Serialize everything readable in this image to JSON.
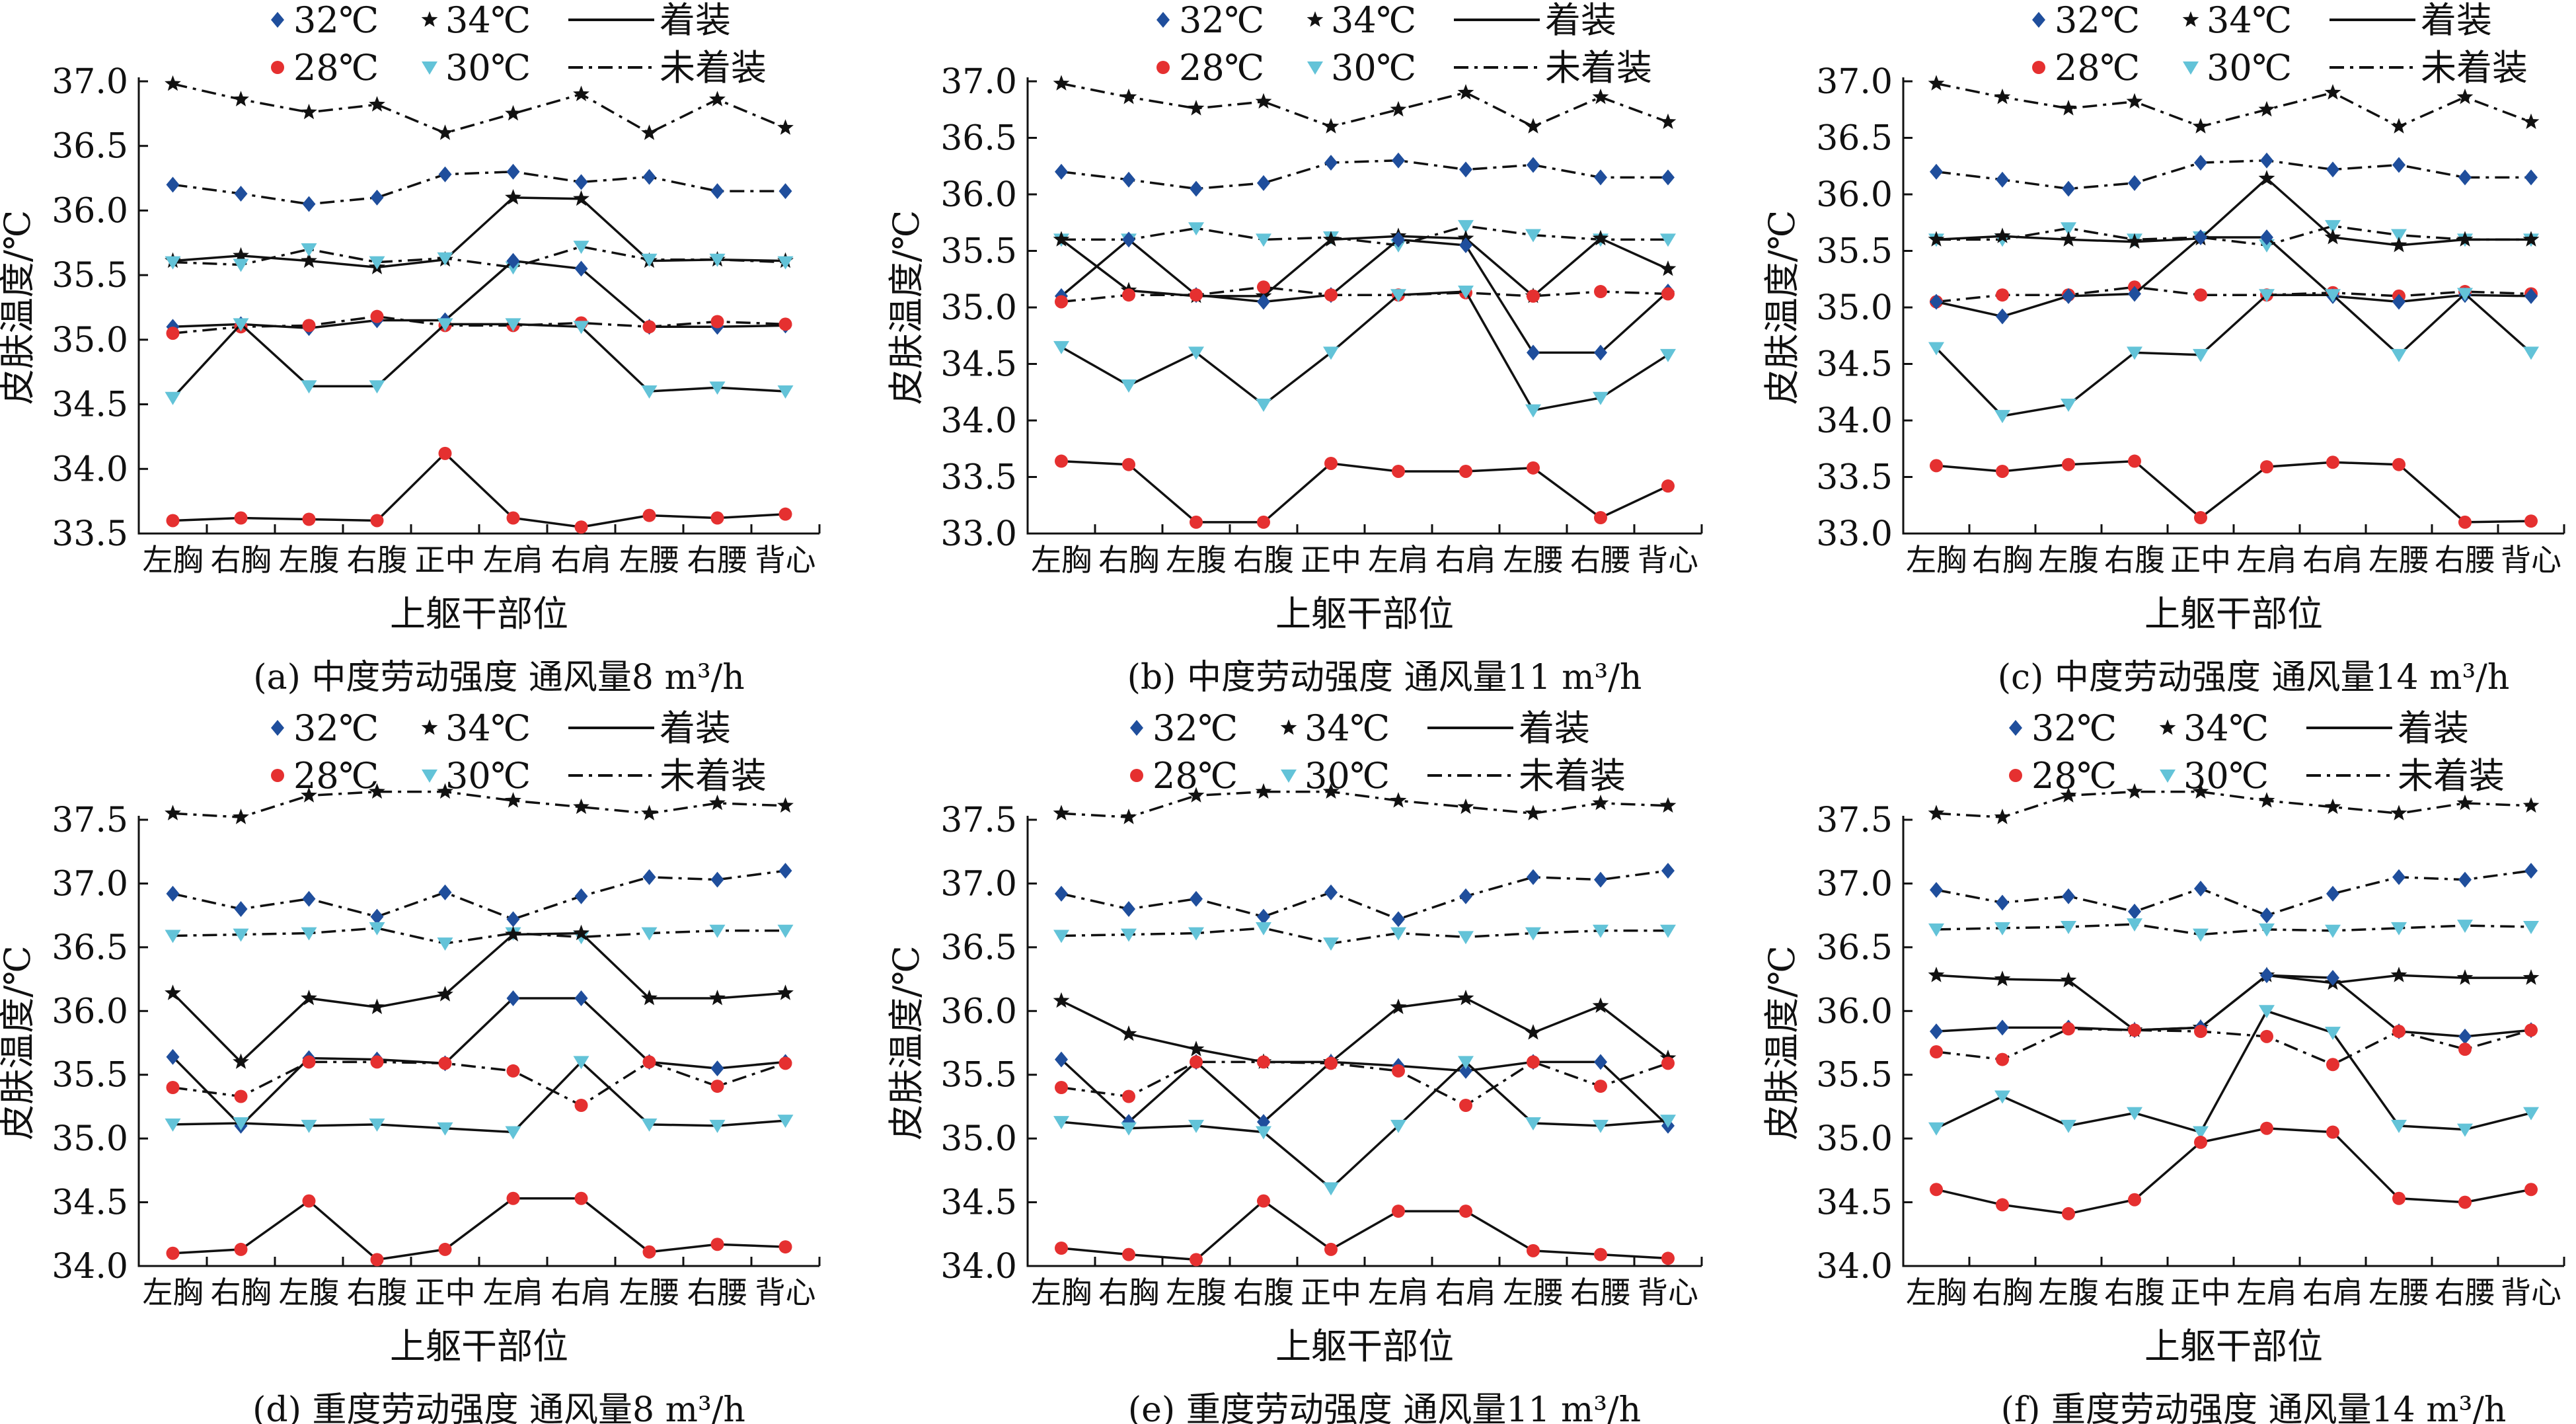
{
  "legend": {
    "row1": [
      {
        "key": "32",
        "label": "32℃",
        "marker": "diamond",
        "color": "#1f4e9c"
      },
      {
        "key": "34",
        "label": "34℃",
        "marker": "star",
        "color": "#111111"
      },
      {
        "key": "worn",
        "label": "着装",
        "line": "solid"
      }
    ],
    "row2": [
      {
        "key": "28",
        "label": "28℃",
        "marker": "circle",
        "color": "#e53030"
      },
      {
        "key": "30",
        "label": "30℃",
        "marker": "triangle-down",
        "color": "#63c3d8"
      },
      {
        "key": "notworn",
        "label": "未着装",
        "line": "dashdot"
      }
    ]
  },
  "chart_data": [
    {
      "type": "line",
      "caption": "(a) 中度劳动强度  通风量8 m³/h",
      "xlabel": "上躯干部位",
      "ylabel": "皮肤温度/℃",
      "categories": [
        "左胸",
        "右胸",
        "左腹",
        "右腹",
        "正中",
        "左肩",
        "右肩",
        "左腰",
        "右腰",
        "背心"
      ],
      "ylim": [
        33.5,
        37.0
      ],
      "yticks": [
        "33.5",
        "34.0",
        "34.5",
        "35.0",
        "35.5",
        "36.0",
        "36.5",
        "37.0"
      ],
      "grid": false,
      "series": [
        {
          "temp": "34",
          "clothing": "notworn",
          "values": [
            36.98,
            36.86,
            36.76,
            36.82,
            36.6,
            36.75,
            36.9,
            36.6,
            36.86,
            36.64
          ]
        },
        {
          "temp": "32",
          "clothing": "notworn",
          "values": [
            36.2,
            36.13,
            36.05,
            36.1,
            36.28,
            36.3,
            36.22,
            36.26,
            36.15,
            36.15
          ]
        },
        {
          "temp": "34",
          "clothing": "worn",
          "values": [
            35.61,
            35.65,
            35.61,
            35.56,
            35.62,
            36.1,
            36.09,
            35.61,
            35.62,
            35.61
          ]
        },
        {
          "temp": "30",
          "clothing": "notworn",
          "values": [
            35.6,
            35.58,
            35.7,
            35.6,
            35.63,
            35.56,
            35.72,
            35.62,
            35.62,
            35.6
          ]
        },
        {
          "temp": "32",
          "clothing": "worn",
          "values": [
            35.1,
            35.12,
            35.09,
            35.15,
            35.15,
            35.61,
            35.55,
            35.1,
            35.1,
            35.11
          ]
        },
        {
          "temp": "28",
          "clothing": "notworn",
          "values": [
            35.05,
            35.1,
            35.11,
            35.18,
            35.11,
            35.11,
            35.13,
            35.1,
            35.14,
            35.12
          ]
        },
        {
          "temp": "30",
          "clothing": "worn",
          "values": [
            34.55,
            35.12,
            34.64,
            34.64,
            35.12,
            35.12,
            35.1,
            34.6,
            34.63,
            34.6
          ]
        },
        {
          "temp": "28",
          "clothing": "worn",
          "values": [
            33.6,
            33.62,
            33.61,
            33.6,
            34.12,
            33.62,
            33.55,
            33.64,
            33.62,
            33.65
          ]
        }
      ]
    },
    {
      "type": "line",
      "caption": "(b) 中度劳动强度  通风量11 m³/h",
      "xlabel": "上躯干部位",
      "ylabel": "皮肤温度/℃",
      "categories": [
        "左胸",
        "右胸",
        "左腹",
        "右腹",
        "正中",
        "左肩",
        "右肩",
        "左腰",
        "右腰",
        "背心"
      ],
      "ylim": [
        33.0,
        37.0
      ],
      "yticks": [
        "33.0",
        "33.5",
        "34.0",
        "34.5",
        "35.0",
        "35.5",
        "36.0",
        "36.5",
        "37.0"
      ],
      "grid": false,
      "series": [
        {
          "temp": "34",
          "clothing": "notworn",
          "values": [
            36.98,
            36.86,
            36.76,
            36.82,
            36.6,
            36.75,
            36.9,
            36.6,
            36.86,
            36.64
          ]
        },
        {
          "temp": "32",
          "clothing": "notworn",
          "values": [
            36.2,
            36.13,
            36.05,
            36.1,
            36.28,
            36.3,
            36.22,
            36.26,
            36.15,
            36.15
          ]
        },
        {
          "temp": "30",
          "clothing": "notworn",
          "values": [
            35.6,
            35.6,
            35.7,
            35.6,
            35.62,
            35.55,
            35.72,
            35.64,
            35.6,
            35.6
          ]
        },
        {
          "temp": "34",
          "clothing": "worn",
          "values": [
            35.6,
            35.15,
            35.1,
            35.1,
            35.6,
            35.63,
            35.61,
            35.1,
            35.61,
            35.34
          ]
        },
        {
          "temp": "32",
          "clothing": "worn",
          "values": [
            35.1,
            35.6,
            35.11,
            35.05,
            35.11,
            35.6,
            35.55,
            34.6,
            34.6,
            35.14
          ]
        },
        {
          "temp": "28",
          "clothing": "notworn",
          "values": [
            35.05,
            35.11,
            35.11,
            35.18,
            35.11,
            35.11,
            35.13,
            35.1,
            35.14,
            35.12
          ]
        },
        {
          "temp": "30",
          "clothing": "worn",
          "values": [
            34.65,
            34.31,
            34.6,
            34.14,
            34.6,
            35.11,
            35.14,
            34.09,
            34.2,
            34.58
          ]
        },
        {
          "temp": "28",
          "clothing": "worn",
          "values": [
            33.64,
            33.61,
            33.1,
            33.1,
            33.62,
            33.55,
            33.55,
            33.58,
            33.14,
            33.42
          ]
        }
      ]
    },
    {
      "type": "line",
      "caption": "(c) 中度劳动强度  通风量14 m³/h",
      "xlabel": "上躯干部位",
      "ylabel": "皮肤温度/℃",
      "categories": [
        "左胸",
        "右胸",
        "左腹",
        "右腹",
        "正中",
        "左肩",
        "右肩",
        "左腰",
        "右腰",
        "背心"
      ],
      "ylim": [
        33.0,
        37.0
      ],
      "yticks": [
        "33.0",
        "33.5",
        "34.0",
        "34.5",
        "35.0",
        "35.5",
        "36.0",
        "36.5",
        "37.0"
      ],
      "grid": false,
      "series": [
        {
          "temp": "34",
          "clothing": "notworn",
          "values": [
            36.98,
            36.86,
            36.76,
            36.82,
            36.6,
            36.75,
            36.9,
            36.6,
            36.86,
            36.64
          ]
        },
        {
          "temp": "32",
          "clothing": "notworn",
          "values": [
            36.2,
            36.13,
            36.05,
            36.1,
            36.28,
            36.3,
            36.22,
            36.26,
            36.15,
            36.15
          ]
        },
        {
          "temp": "30",
          "clothing": "notworn",
          "values": [
            35.6,
            35.6,
            35.7,
            35.6,
            35.62,
            35.55,
            35.72,
            35.64,
            35.6,
            35.6
          ]
        },
        {
          "temp": "34",
          "clothing": "worn",
          "values": [
            35.6,
            35.63,
            35.6,
            35.58,
            35.61,
            36.14,
            35.62,
            35.55,
            35.6,
            35.6
          ]
        },
        {
          "temp": "28",
          "clothing": "notworn",
          "values": [
            35.05,
            35.11,
            35.11,
            35.18,
            35.11,
            35.11,
            35.13,
            35.1,
            35.14,
            35.12
          ]
        },
        {
          "temp": "32",
          "clothing": "worn",
          "values": [
            35.05,
            34.92,
            35.1,
            35.12,
            35.62,
            35.62,
            35.1,
            35.05,
            35.11,
            35.1
          ]
        },
        {
          "temp": "30",
          "clothing": "worn",
          "values": [
            34.64,
            34.04,
            34.14,
            34.6,
            34.58,
            35.11,
            35.11,
            34.58,
            35.12,
            34.6
          ]
        },
        {
          "temp": "28",
          "clothing": "worn",
          "values": [
            33.6,
            33.55,
            33.61,
            33.64,
            33.14,
            33.59,
            33.63,
            33.61,
            33.1,
            33.11
          ]
        }
      ]
    },
    {
      "type": "line",
      "caption": "(d) 重度劳动强度  通风量8 m³/h",
      "xlabel": "上躯干部位",
      "ylabel": "皮肤温度/℃",
      "categories": [
        "左胸",
        "右胸",
        "左腹",
        "右腹",
        "正中",
        "左肩",
        "右肩",
        "左腰",
        "右腰",
        "背心"
      ],
      "ylim": [
        34.0,
        37.5
      ],
      "yticks": [
        "34.0",
        "34.5",
        "35.0",
        "35.5",
        "36.0",
        "36.5",
        "37.0",
        "37.5"
      ],
      "grid": false,
      "series": [
        {
          "temp": "34",
          "clothing": "notworn",
          "values": [
            37.55,
            37.52,
            37.69,
            37.72,
            37.72,
            37.65,
            37.6,
            37.55,
            37.63,
            37.61
          ]
        },
        {
          "temp": "32",
          "clothing": "notworn",
          "values": [
            36.92,
            36.8,
            36.88,
            36.74,
            36.93,
            36.72,
            36.9,
            37.05,
            37.03,
            37.1
          ]
        },
        {
          "temp": "30",
          "clothing": "notworn",
          "values": [
            36.59,
            36.6,
            36.61,
            36.65,
            36.53,
            36.61,
            36.58,
            36.61,
            36.63,
            36.63
          ]
        },
        {
          "temp": "34",
          "clothing": "worn",
          "values": [
            36.14,
            35.6,
            36.1,
            36.03,
            36.13,
            36.6,
            36.61,
            36.1,
            36.1,
            36.14
          ]
        },
        {
          "temp": "32",
          "clothing": "worn",
          "values": [
            35.64,
            35.1,
            35.63,
            35.62,
            35.59,
            36.1,
            36.1,
            35.6,
            35.55,
            35.6
          ]
        },
        {
          "temp": "28",
          "clothing": "notworn",
          "values": [
            35.4,
            35.33,
            35.6,
            35.6,
            35.59,
            35.53,
            35.26,
            35.6,
            35.41,
            35.59
          ]
        },
        {
          "temp": "30",
          "clothing": "worn",
          "values": [
            35.11,
            35.12,
            35.1,
            35.11,
            35.08,
            35.05,
            35.6,
            35.11,
            35.1,
            35.14
          ]
        },
        {
          "temp": "28",
          "clothing": "worn",
          "values": [
            34.1,
            34.13,
            34.51,
            34.05,
            34.13,
            34.53,
            34.53,
            34.11,
            34.17,
            34.15
          ]
        }
      ]
    },
    {
      "type": "line",
      "caption": "(e) 重度劳动强度  通风量11 m³/h",
      "xlabel": "上躯干部位",
      "ylabel": "皮肤温度/℃",
      "categories": [
        "左胸",
        "右胸",
        "左腹",
        "右腹",
        "正中",
        "左肩",
        "右肩",
        "左腰",
        "右腰",
        "背心"
      ],
      "ylim": [
        34.0,
        37.5
      ],
      "yticks": [
        "34.0",
        "34.5",
        "35.0",
        "35.5",
        "36.0",
        "36.5",
        "37.0",
        "37.5"
      ],
      "grid": false,
      "series": [
        {
          "temp": "34",
          "clothing": "notworn",
          "values": [
            37.55,
            37.52,
            37.69,
            37.72,
            37.72,
            37.65,
            37.6,
            37.55,
            37.63,
            37.61
          ]
        },
        {
          "temp": "32",
          "clothing": "notworn",
          "values": [
            36.92,
            36.8,
            36.88,
            36.74,
            36.93,
            36.72,
            36.9,
            37.05,
            37.03,
            37.1
          ]
        },
        {
          "temp": "30",
          "clothing": "notworn",
          "values": [
            36.59,
            36.6,
            36.61,
            36.65,
            36.53,
            36.61,
            36.58,
            36.61,
            36.63,
            36.63
          ]
        },
        {
          "temp": "34",
          "clothing": "worn",
          "values": [
            36.08,
            35.82,
            35.7,
            35.6,
            35.6,
            36.03,
            36.1,
            35.83,
            36.04,
            35.63
          ]
        },
        {
          "temp": "32",
          "clothing": "worn",
          "values": [
            35.62,
            35.13,
            35.6,
            35.13,
            35.6,
            35.57,
            35.53,
            35.6,
            35.6,
            35.1
          ]
        },
        {
          "temp": "28",
          "clothing": "notworn",
          "values": [
            35.4,
            35.33,
            35.6,
            35.6,
            35.59,
            35.53,
            35.26,
            35.6,
            35.41,
            35.59
          ]
        },
        {
          "temp": "30",
          "clothing": "worn",
          "values": [
            35.13,
            35.08,
            35.1,
            35.05,
            34.61,
            35.1,
            35.6,
            35.12,
            35.1,
            35.14
          ]
        },
        {
          "temp": "28",
          "clothing": "worn",
          "values": [
            34.14,
            34.09,
            34.05,
            34.51,
            34.13,
            34.43,
            34.43,
            34.12,
            34.09,
            34.06
          ]
        }
      ]
    },
    {
      "type": "line",
      "caption": "(f) 重度劳动强度  通风量14 m³/h",
      "xlabel": "上躯干部位",
      "ylabel": "皮肤温度/℃",
      "categories": [
        "左胸",
        "右胸",
        "左腹",
        "右腹",
        "正中",
        "左肩",
        "右肩",
        "左腰",
        "右腰",
        "背心"
      ],
      "ylim": [
        34.0,
        37.5
      ],
      "yticks": [
        "34.0",
        "34.5",
        "35.0",
        "35.5",
        "36.0",
        "36.5",
        "37.0",
        "37.5"
      ],
      "grid": false,
      "series": [
        {
          "temp": "34",
          "clothing": "notworn",
          "values": [
            37.55,
            37.52,
            37.69,
            37.72,
            37.72,
            37.65,
            37.6,
            37.55,
            37.63,
            37.61
          ]
        },
        {
          "temp": "32",
          "clothing": "notworn",
          "values": [
            36.95,
            36.85,
            36.9,
            36.78,
            36.96,
            36.75,
            36.92,
            37.05,
            37.03,
            37.1
          ]
        },
        {
          "temp": "30",
          "clothing": "notworn",
          "values": [
            36.64,
            36.65,
            36.66,
            36.68,
            36.6,
            36.64,
            36.63,
            36.65,
            36.67,
            36.66
          ]
        },
        {
          "temp": "34",
          "clothing": "worn",
          "values": [
            36.28,
            36.25,
            36.24,
            35.85,
            35.87,
            36.28,
            36.22,
            36.28,
            36.26,
            36.26
          ]
        },
        {
          "temp": "32",
          "clothing": "worn",
          "values": [
            35.84,
            35.87,
            35.87,
            35.85,
            35.87,
            36.28,
            36.26,
            35.84,
            35.8,
            35.85
          ]
        },
        {
          "temp": "28",
          "clothing": "notworn",
          "values": [
            35.68,
            35.62,
            35.86,
            35.85,
            35.84,
            35.8,
            35.58,
            35.84,
            35.7,
            35.85
          ]
        },
        {
          "temp": "30",
          "clothing": "worn",
          "values": [
            35.08,
            35.33,
            35.1,
            35.2,
            35.05,
            36.0,
            35.83,
            35.1,
            35.07,
            35.2
          ]
        },
        {
          "temp": "28",
          "clothing": "worn",
          "values": [
            34.6,
            34.48,
            34.41,
            34.52,
            34.97,
            35.08,
            35.05,
            34.53,
            34.5,
            34.6
          ]
        }
      ]
    }
  ]
}
